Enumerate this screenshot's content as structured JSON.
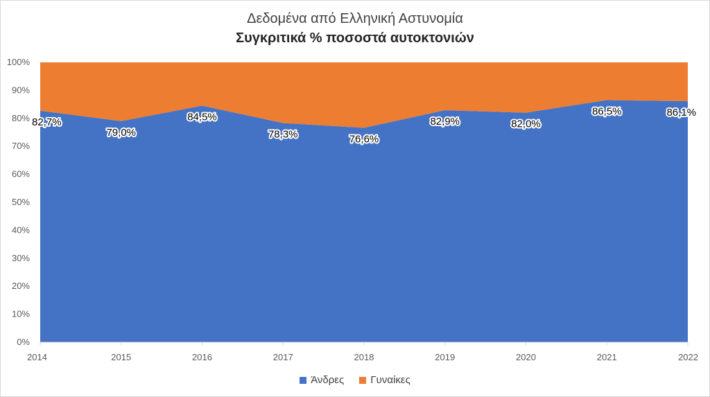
{
  "chart_data": {
    "type": "area",
    "stacked": "percent",
    "title": "Δεδομένα από Ελληνική Αστυνομία",
    "subtitle": "Συγκριτικά % ποσοστά αυτοκτονιών",
    "x": [
      "2014",
      "2015",
      "2016",
      "2017",
      "2018",
      "2019",
      "2020",
      "2021",
      "2022"
    ],
    "ylim": [
      0,
      100
    ],
    "yticks": [
      "0%",
      "10%",
      "20%",
      "30%",
      "40%",
      "50%",
      "60%",
      "70%",
      "80%",
      "90%",
      "100%"
    ],
    "grid": false,
    "legend_position": "bottom",
    "series": [
      {
        "name": "Άνδρες",
        "color": "#4472C4",
        "values": [
          82.7,
          79.0,
          84.5,
          78.3,
          76.6,
          82.9,
          82.0,
          86.5,
          86.1
        ],
        "data_labels": [
          "82,7%",
          "79,0%",
          "84,5%",
          "78,3%",
          "76,6%",
          "82,9%",
          "82,0%",
          "86,5%",
          "86,1%"
        ]
      },
      {
        "name": "Γυναίκες",
        "color": "#ED7D31",
        "values": [
          17.3,
          21.0,
          15.5,
          21.7,
          23.4,
          17.1,
          18.0,
          13.5,
          13.9
        ]
      }
    ]
  }
}
